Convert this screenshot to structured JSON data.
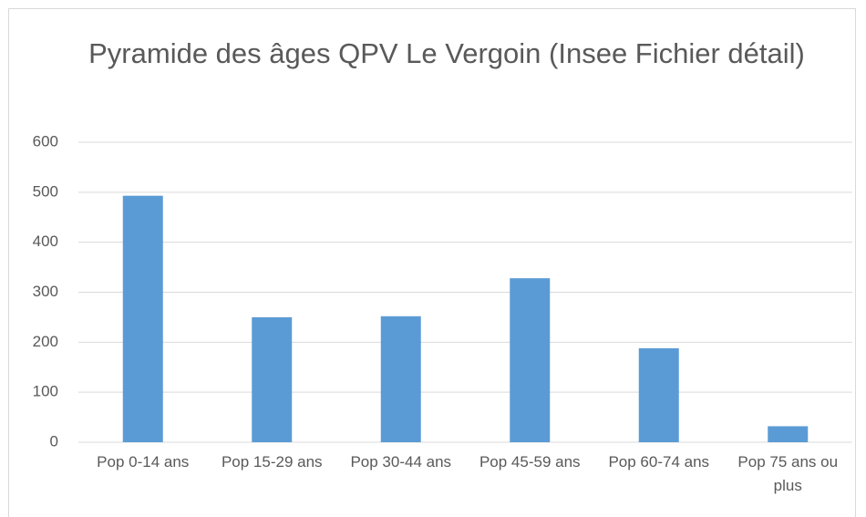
{
  "chart_data": {
    "type": "bar",
    "title": "Pyramide des âges QPV Le Vergoin (Insee Fichier détail)",
    "categories": [
      "Pop 0-14 ans",
      "Pop 15-29 ans",
      "Pop 30-44 ans",
      "Pop 45-59 ans",
      "Pop 60-74 ans",
      "Pop 75 ans ou plus"
    ],
    "values": [
      493,
      250,
      252,
      328,
      188,
      32
    ],
    "color": "#5b9bd5",
    "ylim": [
      0,
      600
    ],
    "yticks": [
      0,
      100,
      200,
      300,
      400,
      500,
      600
    ],
    "grid": true
  }
}
